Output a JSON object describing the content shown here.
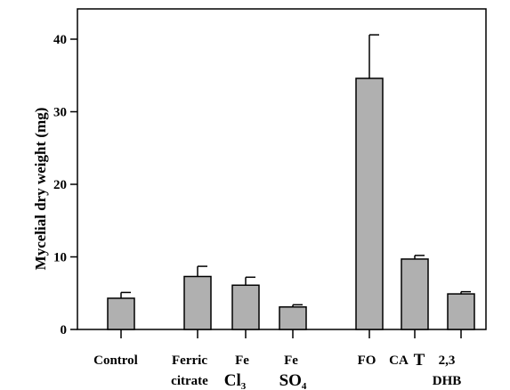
{
  "chart_data": {
    "type": "bar",
    "title": "",
    "xlabel": "",
    "ylabel": "Mycelial dry weight (mg)",
    "ylim": [
      0,
      45
    ],
    "yticks": [
      0,
      10,
      20,
      30,
      40
    ],
    "categories": [
      "Control",
      "Ferric citrate",
      "Fe Cl3",
      "Fe SO4",
      "FO",
      "CA T",
      "2,3 DHB"
    ],
    "values": [
      4.3,
      7.3,
      6.1,
      3.1,
      34.6,
      9.7,
      4.9
    ],
    "errors": [
      0.8,
      1.4,
      1.1,
      0.3,
      6.0,
      0.5,
      0.3
    ],
    "bar_color": "#b0b0b0",
    "grid": false,
    "legend": "none"
  },
  "labels": {
    "control": "Control",
    "ferric_1": "Ferric",
    "ferric_2": "citrate",
    "fecl3_1": "Fe",
    "fecl3_2": "Cl",
    "fecl3_sub": "3",
    "feso4_1": "Fe",
    "feso4_2": "SO",
    "feso4_sub": "4",
    "fo": "FO",
    "cat_a": "CA",
    "cat_b": "T",
    "dhb_1": "2,3",
    "dhb_2": "DHB"
  }
}
